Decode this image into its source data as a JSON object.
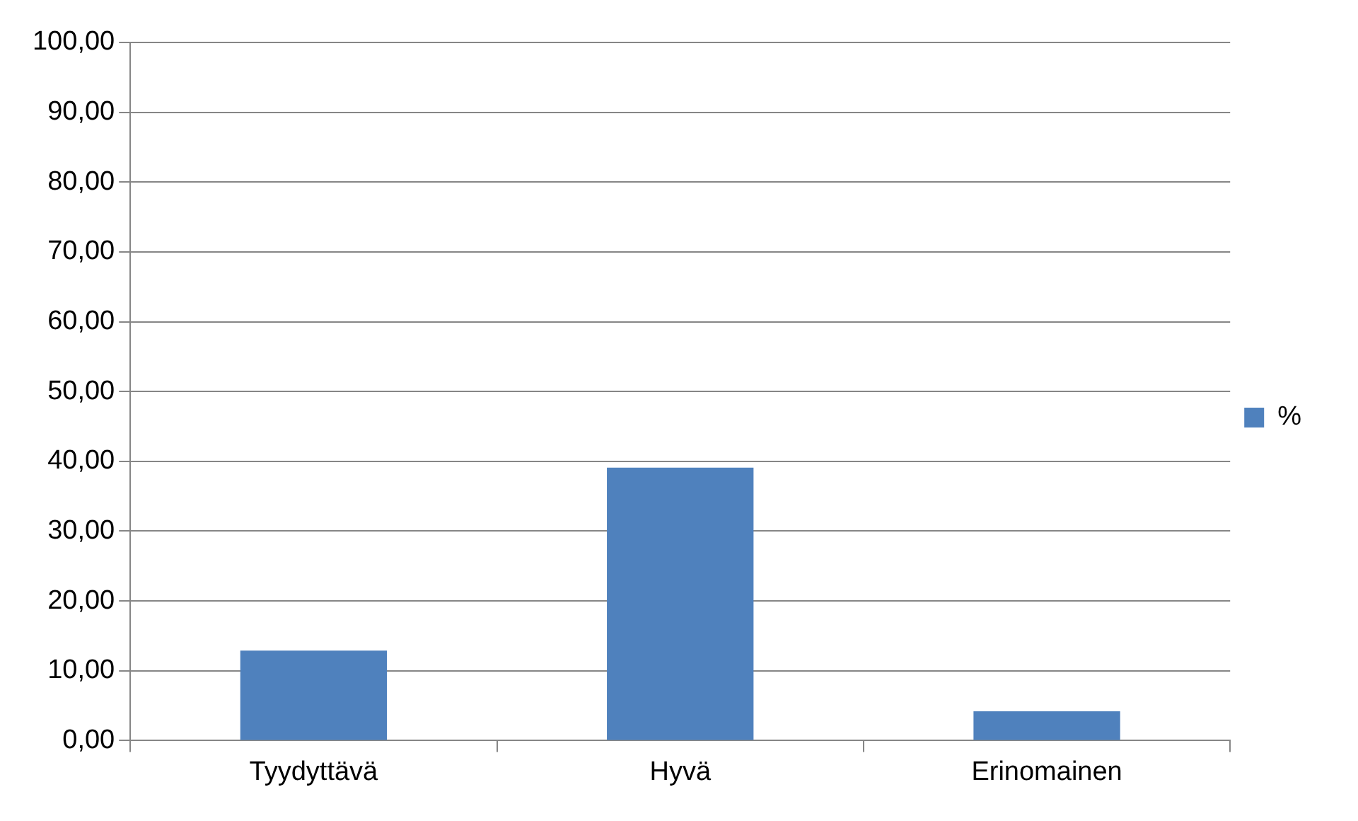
{
  "chart_data": {
    "type": "bar",
    "categories": [
      "Tyydyttävä",
      "Hyvä",
      "Erinomainen"
    ],
    "series": [
      {
        "name": "%",
        "color": "#4f81bd",
        "values": [
          12.9,
          39.1,
          4.2
        ]
      }
    ],
    "ylim": [
      0,
      100
    ],
    "yticks": [
      {
        "value": 0,
        "label": "0,00"
      },
      {
        "value": 10,
        "label": "10,00"
      },
      {
        "value": 20,
        "label": "20,00"
      },
      {
        "value": 30,
        "label": "30,00"
      },
      {
        "value": 40,
        "label": "40,00"
      },
      {
        "value": 50,
        "label": "50,00"
      },
      {
        "value": 60,
        "label": "60,00"
      },
      {
        "value": 70,
        "label": "70,00"
      },
      {
        "value": 80,
        "label": "80,00"
      },
      {
        "value": 90,
        "label": "90,00"
      },
      {
        "value": 100,
        "label": "100,00"
      }
    ],
    "grid": "y",
    "legend": "right"
  }
}
